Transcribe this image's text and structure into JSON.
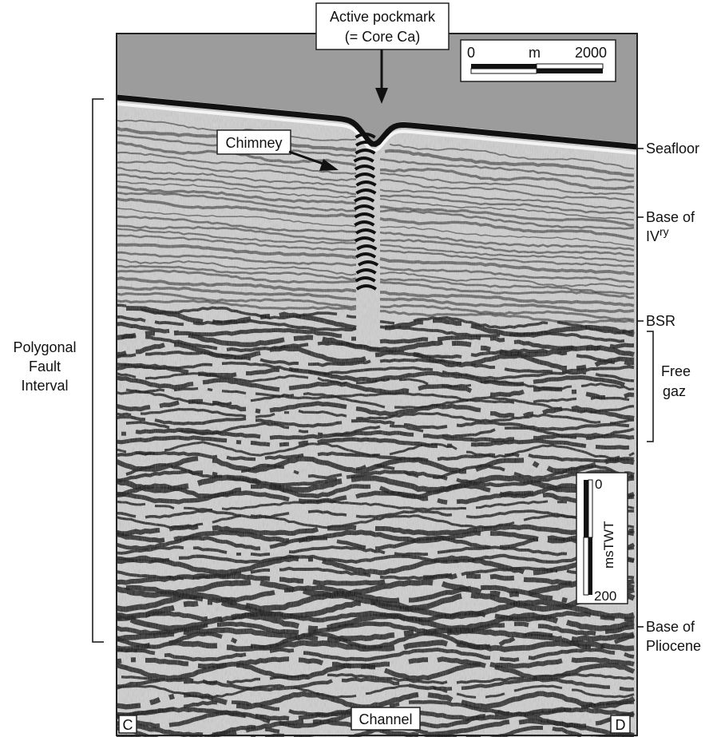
{
  "figure": {
    "callouts": {
      "pockmark_line1": "Active pockmark",
      "pockmark_line2": "(= Core Ca)",
      "chimney": "Chimney",
      "channel": "Channel"
    },
    "corners": {
      "left": "C",
      "right": "D"
    },
    "horizontal_scale": {
      "start": "0",
      "unit": "m",
      "end": "2000"
    },
    "vertical_scale": {
      "top": "0",
      "unit": "msTWT",
      "bottom": "200"
    },
    "right_labels": {
      "seafloor": "Seafloor",
      "base_quaternary_line1": "Base of",
      "base_quaternary_line2": "IV",
      "base_quaternary_superscript": "ry",
      "bsr": "BSR",
      "free_gas_line1": "Free",
      "free_gas_line2": "gaz",
      "base_pliocene_line1": "Base of",
      "base_pliocene_line2": "Pliocene"
    },
    "left_labels": {
      "interval_line1": "Polygonal",
      "interval_line2": "Fault",
      "interval_line3": "Interval"
    },
    "colors": {
      "water": "#9c9c9c",
      "background": "#cfcfcf",
      "reflector": "#111111",
      "frame": "#222222"
    }
  }
}
